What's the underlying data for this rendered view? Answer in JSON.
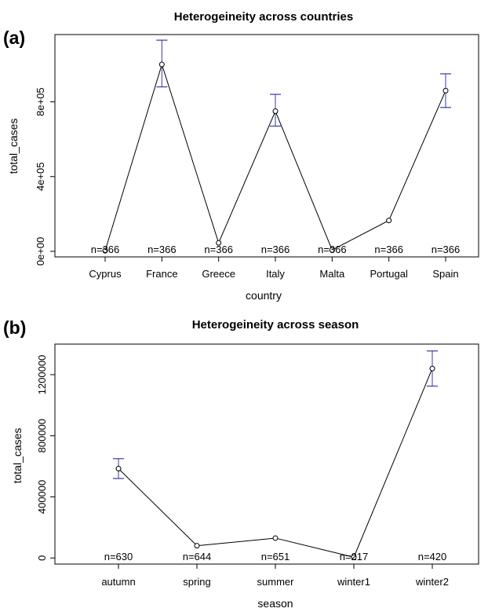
{
  "panels": [
    {
      "label": "(a)"
    },
    {
      "label": "(b)"
    }
  ],
  "chart_data": [
    {
      "type": "line",
      "title": "Heterogeineity across countries",
      "xlabel": "country",
      "ylabel": "total_cases",
      "categories": [
        "Cyprus",
        "France",
        "Greece",
        "Italy",
        "Malta",
        "Portugal",
        "Spain"
      ],
      "values": [
        3000,
        1000000,
        45000,
        750000,
        7000,
        165000,
        860000
      ],
      "ci_upper": [
        null,
        1130000,
        null,
        840000,
        null,
        null,
        950000
      ],
      "ci_lower": [
        null,
        880000,
        null,
        670000,
        null,
        null,
        770000
      ],
      "n_labels": [
        "n=366",
        "n=366",
        "n=366",
        "n=366",
        "n=366",
        "n=366",
        "n=366"
      ],
      "yticks": [
        0,
        400000,
        800000
      ],
      "ytick_labels": [
        "0e+00",
        "4e+05",
        "8e+05"
      ],
      "ylim": [
        -30000,
        1160000
      ],
      "errorbar_color": "#3a3aa8",
      "grid": false
    },
    {
      "type": "line",
      "title": "Heterogeineity across season",
      "xlabel": "season",
      "ylabel": "total_cases",
      "categories": [
        "autumn",
        "spring",
        "summer",
        "winter1",
        "winter2"
      ],
      "values": [
        585000,
        80000,
        130000,
        5000,
        1240000
      ],
      "ci_upper": [
        650000,
        null,
        null,
        null,
        1355000
      ],
      "ci_lower": [
        520000,
        null,
        null,
        null,
        1125000
      ],
      "n_labels": [
        "n=630",
        "n=644",
        "n=651",
        "n=217",
        "n=420"
      ],
      "yticks": [
        0,
        400000,
        800000,
        1200000
      ],
      "ytick_labels": [
        "0",
        "400000",
        "800000",
        "1200000"
      ],
      "ylim": [
        -40000,
        1400000
      ],
      "errorbar_color": "#3a3aa8",
      "grid": false
    }
  ]
}
